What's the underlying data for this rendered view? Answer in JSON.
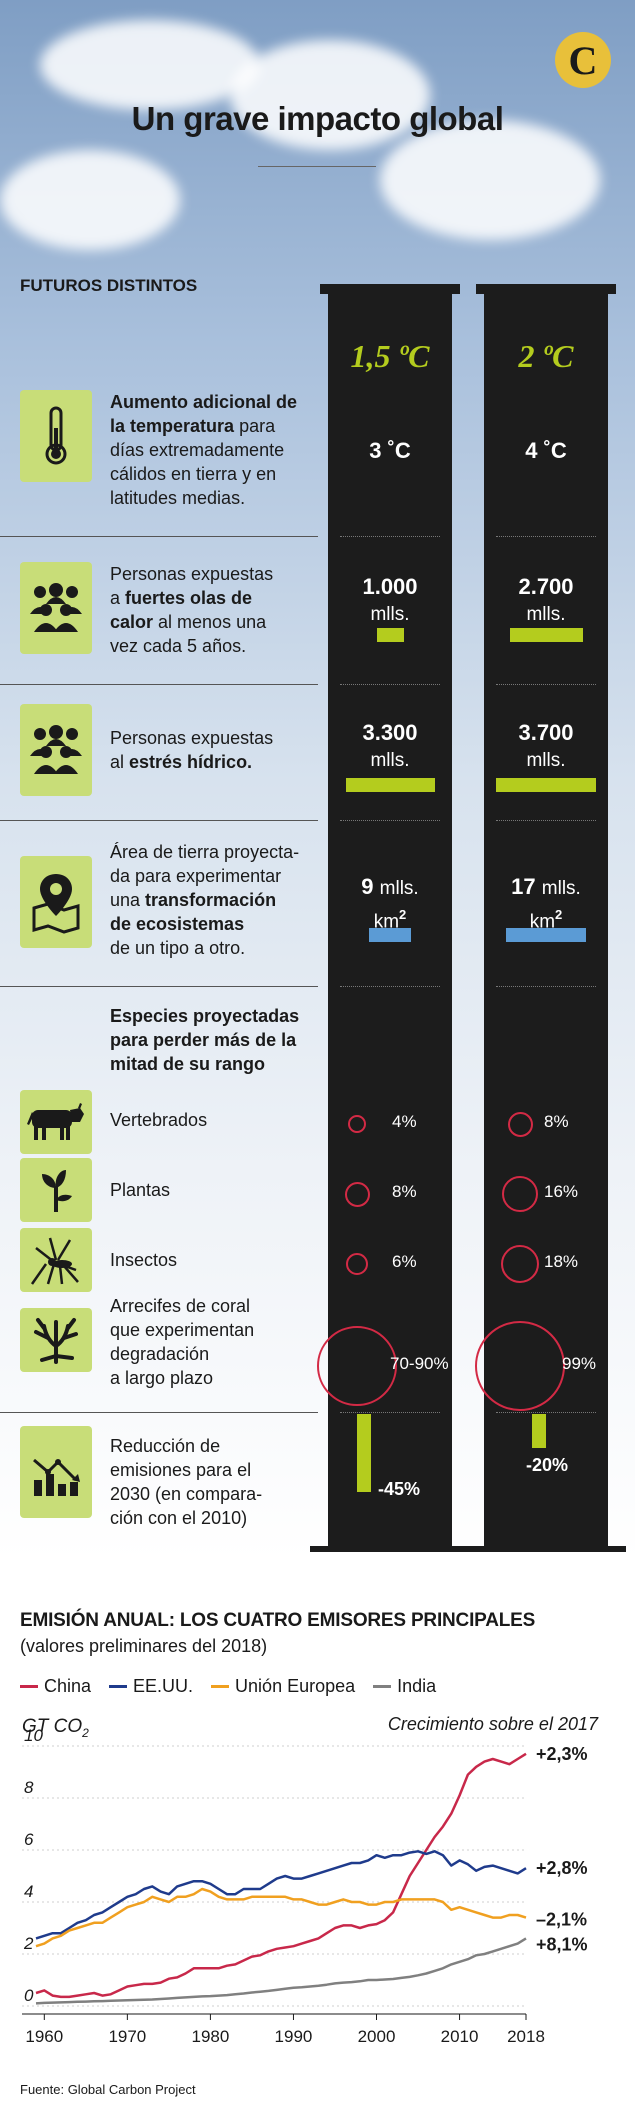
{
  "title": "Un grave impacto global",
  "section_label": "FUTUROS DISTINTOS",
  "columns": [
    "1,5 ºC",
    "2 ºC"
  ],
  "rows": {
    "temp": {
      "icon": "thermometer-icon",
      "a": "3 ˚C",
      "b": "4 ˚C"
    },
    "heat": {
      "icon": "people-group-icon",
      "a": "1.000",
      "a_unit": "mlls.",
      "b": "2.700",
      "b_unit": "mlls.",
      "a_level": 0.27,
      "b_level": 0.73
    },
    "water": {
      "icon": "people-group-icon",
      "a": "3.300",
      "a_unit": "mlls.",
      "b": "3.700",
      "b_unit": "mlls.",
      "a_level": 0.89,
      "b_level": 1.0
    },
    "land": {
      "icon": "map-pin-icon",
      "a": "9",
      "a_unit": "mlls.",
      "b": "17",
      "b_unit": "mlls.",
      "unit2": "km",
      "sup": "2",
      "a_level": 0.53,
      "b_level": 1.0
    },
    "species_head": "Especies proyectadas para perder más de la mitad de su rango",
    "vert": {
      "icon": "cow-icon",
      "label": "Vertebrados",
      "a": "4%",
      "b": "8%"
    },
    "plants": {
      "icon": "plant-icon",
      "label": "Plantas",
      "a": "8%",
      "b": "16%"
    },
    "insects": {
      "icon": "mosquito-icon",
      "label": "Insectos",
      "a": "6%",
      "b": "18%"
    },
    "coral": {
      "icon": "coral-icon",
      "label1": "Arrecifes de coral",
      "label2": "que experimentan",
      "label3": "degradación",
      "label4": "a largo plazo",
      "a": "70-90%",
      "b": "99%"
    },
    "emis": {
      "icon": "chart-down-icon",
      "l1": "Reducción de",
      "l2": "emisiones para el",
      "l3": "2030 (en compara-",
      "l4": "ción con el 2010)",
      "a": "-45%",
      "b": "-20%"
    }
  },
  "text": {
    "temp": [
      "Aumento adicional de",
      "la temperatura",
      " para",
      "días extremadamente",
      "cálidos en tierra y en",
      "latitudes medias."
    ],
    "heat": [
      "Personas expuestas",
      "a ",
      "fuertes olas de",
      "calor",
      " al menos una",
      "vez cada 5 años."
    ],
    "water": [
      "Personas expuestas",
      "al ",
      "estrés hídrico."
    ],
    "land": [
      "Área de tierra proyecta-",
      "da para experimentar",
      "una ",
      "transformación",
      "de ecosistemas",
      "de un tipo a otro."
    ]
  },
  "colors": {
    "accent": "#b4cc1e",
    "blue": "#5b9bd5",
    "red": "#d32a45"
  },
  "chart_data": {
    "type": "line",
    "title": "EMISIÓN ANUAL: LOS CUATRO EMISORES PRINCIPALES",
    "subtitle": "(valores preliminares del 2018)",
    "ylabel": "GT CO",
    "ylabel_sub": "2",
    "annotation_title": "Crecimiento sobre el 2017",
    "ylim": [
      0,
      10
    ],
    "yticks": [
      0,
      2,
      4,
      6,
      8,
      10
    ],
    "xticks": [
      1960,
      1970,
      1980,
      1990,
      2000,
      2010,
      2018
    ],
    "x": [
      1959,
      1960,
      1961,
      1962,
      1963,
      1964,
      1965,
      1966,
      1967,
      1968,
      1969,
      1970,
      1971,
      1972,
      1973,
      1974,
      1975,
      1976,
      1977,
      1978,
      1979,
      1980,
      1981,
      1982,
      1983,
      1984,
      1985,
      1986,
      1987,
      1988,
      1989,
      1990,
      1991,
      1992,
      1993,
      1994,
      1995,
      1996,
      1997,
      1998,
      1999,
      2000,
      2001,
      2002,
      2003,
      2004,
      2005,
      2006,
      2007,
      2008,
      2009,
      2010,
      2011,
      2012,
      2013,
      2014,
      2015,
      2016,
      2017,
      2018
    ],
    "series": [
      {
        "name": "China",
        "color": "#c8284a",
        "label": "+2,3%",
        "values": [
          0.5,
          0.6,
          0.4,
          0.35,
          0.35,
          0.4,
          0.45,
          0.5,
          0.4,
          0.45,
          0.6,
          0.75,
          0.8,
          0.85,
          0.85,
          0.9,
          1.05,
          1.1,
          1.25,
          1.45,
          1.45,
          1.45,
          1.45,
          1.55,
          1.6,
          1.75,
          1.9,
          1.95,
          2.1,
          2.2,
          2.25,
          2.3,
          2.4,
          2.5,
          2.6,
          2.8,
          3.0,
          3.1,
          3.1,
          3.0,
          3.1,
          3.15,
          3.3,
          3.6,
          4.3,
          5.0,
          5.5,
          6.0,
          6.5,
          6.9,
          7.4,
          8.1,
          8.9,
          9.2,
          9.4,
          9.5,
          9.4,
          9.3,
          9.5,
          9.7
        ]
      },
      {
        "name": "EE.UU.",
        "color": "#1f3b8c",
        "label": "+2,8%",
        "values": [
          2.6,
          2.7,
          2.8,
          2.8,
          3.0,
          3.2,
          3.3,
          3.5,
          3.6,
          3.8,
          4.0,
          4.2,
          4.3,
          4.5,
          4.6,
          4.4,
          4.3,
          4.6,
          4.7,
          4.8,
          4.8,
          4.7,
          4.5,
          4.3,
          4.3,
          4.5,
          4.5,
          4.5,
          4.7,
          4.9,
          5.0,
          4.9,
          4.9,
          5.0,
          5.1,
          5.2,
          5.3,
          5.4,
          5.5,
          5.5,
          5.6,
          5.8,
          5.7,
          5.8,
          5.8,
          5.9,
          5.95,
          5.85,
          5.95,
          5.8,
          5.4,
          5.6,
          5.45,
          5.2,
          5.35,
          5.4,
          5.3,
          5.2,
          5.1,
          5.3
        ]
      },
      {
        "name": "Unión Europea",
        "color": "#f0a020",
        "label": "–2,1%",
        "values": [
          2.3,
          2.4,
          2.6,
          2.7,
          2.9,
          3.0,
          3.1,
          3.2,
          3.2,
          3.4,
          3.6,
          3.8,
          3.9,
          4.0,
          4.2,
          4.1,
          4.0,
          4.2,
          4.2,
          4.3,
          4.5,
          4.4,
          4.2,
          4.1,
          4.1,
          4.1,
          4.2,
          4.2,
          4.2,
          4.2,
          4.2,
          4.1,
          4.1,
          4.0,
          3.9,
          3.9,
          4.0,
          4.1,
          4.0,
          4.0,
          3.9,
          3.9,
          4.0,
          4.0,
          4.1,
          4.1,
          4.1,
          4.1,
          4.1,
          4.0,
          3.7,
          3.8,
          3.7,
          3.6,
          3.5,
          3.4,
          3.4,
          3.5,
          3.5,
          3.4
        ]
      },
      {
        "name": "India",
        "color": "#808080",
        "label": "+8,1%",
        "values": [
          0.1,
          0.12,
          0.13,
          0.14,
          0.15,
          0.16,
          0.17,
          0.18,
          0.19,
          0.2,
          0.21,
          0.22,
          0.23,
          0.24,
          0.25,
          0.27,
          0.29,
          0.31,
          0.33,
          0.35,
          0.37,
          0.38,
          0.4,
          0.42,
          0.45,
          0.48,
          0.52,
          0.55,
          0.58,
          0.62,
          0.66,
          0.7,
          0.72,
          0.75,
          0.78,
          0.82,
          0.87,
          0.9,
          0.92,
          0.95,
          1.0,
          1.0,
          1.02,
          1.04,
          1.08,
          1.12,
          1.18,
          1.25,
          1.35,
          1.45,
          1.6,
          1.7,
          1.8,
          1.95,
          2.0,
          2.1,
          2.2,
          2.3,
          2.4,
          2.6
        ]
      }
    ]
  },
  "source": "Fuente: Global Carbon Project"
}
